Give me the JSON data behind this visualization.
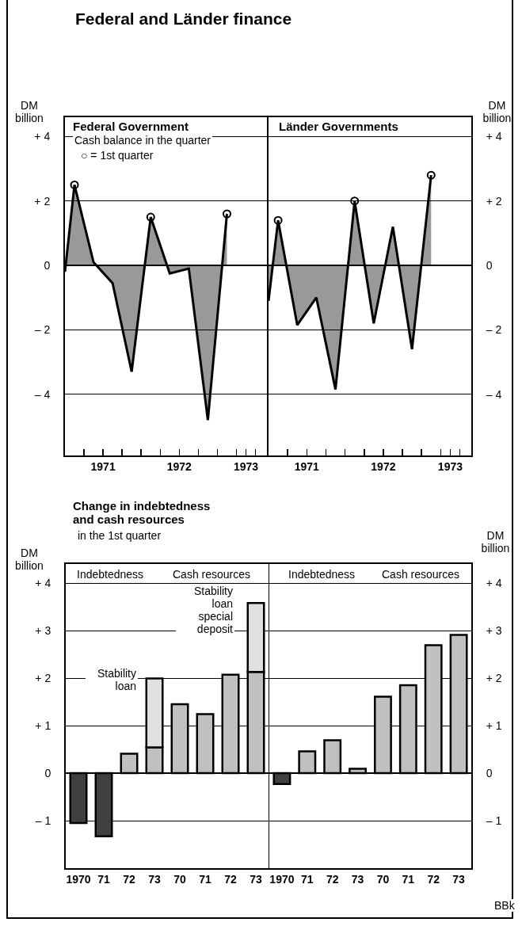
{
  "chart_data": [
    {
      "type": "area",
      "title": "Federal and Länder finance",
      "subtitle": "Federal Government",
      "ylabel": "DM billion",
      "annotations": [
        "Cash balance in the quarter",
        "○ = 1st quarter"
      ],
      "series": [
        {
          "color": "#000000",
          "x": [
            1971,
            1971.125,
            1971.375,
            1971.625,
            1971.875,
            1972.125,
            1972.375,
            1972.625,
            1972.875,
            1973.125
          ],
          "values": [
            -0.2,
            2.5,
            0.1,
            -0.55,
            -3.3,
            1.5,
            -0.25,
            -0.1,
            -4.8,
            1.6
          ]
        },
        {
          "type": "scatter",
          "marker": "circle",
          "color": "#000000",
          "x": [
            1971.125,
            1972.125,
            1973.125
          ],
          "values": [
            2.5,
            1.5,
            1.6
          ]
        }
      ],
      "xlim": [
        1971,
        1973.65
      ],
      "xticks": [
        {
          "value": 1971.25,
          "label": null
        },
        {
          "value": 1971.5,
          "label": "1971"
        },
        {
          "value": 1971.75,
          "label": null
        },
        {
          "value": 1972,
          "label": null
        },
        {
          "value": 1972.25,
          "label": null
        },
        {
          "value": 1972.5,
          "label": "1972"
        },
        {
          "value": 1972.75,
          "label": null
        },
        {
          "value": 1973,
          "label": null
        },
        {
          "value": 1973.25,
          "label": null
        },
        {
          "value": 1973.375,
          "label": "1973"
        },
        {
          "value": 1973.5,
          "label": null
        }
      ],
      "ylim": [
        -5.9,
        4.6
      ],
      "yticks": [
        {
          "value": 4,
          "label": "+ 4"
        },
        {
          "value": 2,
          "label": "+ 2"
        },
        0,
        {
          "value": -2,
          "label": "– 2"
        },
        {
          "value": -4,
          "label": "– 4"
        }
      ],
      "grid": "y"
    },
    {
      "type": "area",
      "subtitle": "Länder Governments",
      "y2label": "DM billion",
      "series": [
        {
          "axis": "y2",
          "color": "#000000",
          "x": [
            1971,
            1971.125,
            1971.375,
            1971.625,
            1971.875,
            1972.125,
            1972.375,
            1972.625,
            1972.875,
            1973.125
          ],
          "values": [
            -1.1,
            1.4,
            -1.85,
            -1.0,
            -3.85,
            2.0,
            -1.8,
            1.2,
            -2.6,
            2.8
          ]
        },
        {
          "type": "scatter",
          "axis": "y2",
          "marker": "circle",
          "color": "#000000",
          "x": [
            1971.125,
            1972.125,
            1973.125
          ],
          "values": [
            1.4,
            2.0,
            2.8
          ]
        }
      ],
      "xlim": [
        1971,
        1973.65
      ],
      "xticks": [
        {
          "value": 1971.25,
          "label": null
        },
        {
          "value": 1971.5,
          "label": "1971"
        },
        {
          "value": 1971.75,
          "label": null
        },
        {
          "value": 1972,
          "label": null
        },
        {
          "value": 1972.25,
          "label": null
        },
        {
          "value": 1972.5,
          "label": "1972"
        },
        {
          "value": 1972.75,
          "label": null
        },
        {
          "value": 1973,
          "label": null
        },
        {
          "value": 1973.25,
          "label": null
        },
        {
          "value": 1973.375,
          "label": "1973"
        },
        {
          "value": 1973.5,
          "label": null
        }
      ],
      "y2lim": [
        -5.9,
        4.6
      ],
      "y2ticks": [
        {
          "value": 4,
          "label": "+ 4"
        },
        {
          "value": 2,
          "label": "+ 2"
        },
        0,
        {
          "value": -2,
          "label": "– 2"
        },
        {
          "value": -4,
          "label": "– 4"
        }
      ],
      "grid": "y"
    },
    {
      "type": "bar",
      "stacked": true,
      "title": "Change in indebtedness and cash resources",
      "subtitle": "in the 1st quarter",
      "ylabel": "DM billion",
      "annotations": [
        "Indebtedness",
        "Cash resources",
        "Stability loan",
        "Stability loan special deposit"
      ],
      "categories": [
        "1970",
        "71",
        "72",
        "73",
        "70",
        "71",
        "72",
        "73"
      ],
      "series": [
        {
          "colors": [
            "#404040",
            "#404040",
            "#c0c0c0",
            "#c0c0c0",
            "#c0c0c0",
            "#c0c0c0",
            "#c0c0c0",
            "#c0c0c0"
          ],
          "values": [
            -1.05,
            -1.33,
            0.41,
            0.54,
            1.45,
            1.24,
            2.07,
            2.13
          ]
        },
        {
          "color": "#e0e0e0",
          "values": [
            null,
            null,
            null,
            1.45,
            null,
            null,
            null,
            1.45
          ]
        }
      ],
      "ylim": [
        -2,
        4.4
      ],
      "yticks": [
        {
          "value": 4,
          "label": "+ 4"
        },
        {
          "value": 3,
          "label": "+ 3"
        },
        {
          "value": 2,
          "label": "+ 2"
        },
        {
          "value": 1,
          "label": "+ 1"
        },
        0,
        {
          "value": -1,
          "label": "– 1"
        }
      ],
      "grid": "y"
    },
    {
      "type": "bar",
      "y2label": "DM billion",
      "annotations": [
        "Indebtedness",
        "Cash resources",
        "BBk"
      ],
      "categories": [
        "1970",
        "71",
        "72",
        "73",
        "70",
        "71",
        "72",
        "73"
      ],
      "series": [
        {
          "axis": "y2",
          "colors": [
            "#404040",
            "#c0c0c0",
            "#c0c0c0",
            "#c0c0c0",
            "#c0c0c0",
            "#c0c0c0",
            "#c0c0c0",
            "#c0c0c0"
          ],
          "values": [
            -0.23,
            0.46,
            0.69,
            0.09,
            1.61,
            1.85,
            2.69,
            2.91
          ]
        }
      ],
      "y2lim": [
        -2,
        4.4
      ],
      "y2ticks": [
        {
          "value": 4,
          "label": "+ 4"
        },
        {
          "value": 3,
          "label": "+ 3"
        },
        {
          "value": 2,
          "label": "+ 2"
        },
        {
          "value": 1,
          "label": "+ 1"
        },
        0,
        {
          "value": -1,
          "label": "– 1"
        }
      ],
      "grid": "y"
    }
  ]
}
